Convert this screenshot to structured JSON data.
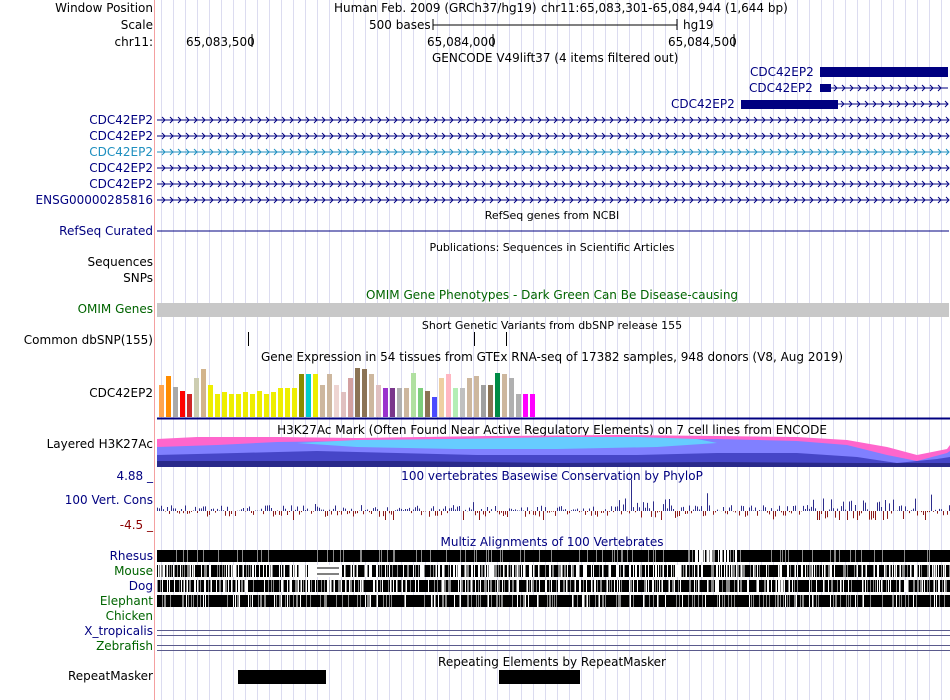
{
  "header": {
    "window_position_label": "Window Position",
    "assembly": "Human Feb. 2009 (GRCh37/hg19)",
    "position": "chr11:65,083,301-65,084,944 (1,644 bp)",
    "scale_label": "Scale",
    "scale_value": "500 bases",
    "scale_db": "hg19",
    "chrom_label": "chr11:",
    "ticks": [
      "65,083,500",
      "65,084,000",
      "65,084,500"
    ]
  },
  "gencode": {
    "title": "GENCODE V49lift37 (4 items filtered out)",
    "transcripts": [
      "CDC42EP2",
      "CDC42EP2",
      "CDC42EP2"
    ],
    "stacked": [
      "CDC42EP2",
      "CDC42EP2",
      "CDC42EP2",
      "CDC42EP2",
      "CDC42EP2",
      "ENSG00000285816"
    ]
  },
  "refseq": {
    "title": "RefSeq genes from NCBI",
    "label": "RefSeq Curated"
  },
  "publications": {
    "title": "Publications: Sequences in Scientific Articles",
    "labels": [
      "Sequences",
      "SNPs"
    ]
  },
  "omim": {
    "title": "OMIM Gene Phenotypes - Dark Green Can Be Disease-causing",
    "label": "OMIM Genes"
  },
  "dbsnp": {
    "title": "Short Genetic Variants from dbSNP release 155",
    "label": "Common dbSNP(155)"
  },
  "gtex": {
    "title": "Gene Expression in 54 tissues from GTEx RNA-seq of 17382 samples, 948 donors (V8, Aug 2019)",
    "label": "CDC42EP2",
    "bar_colors": [
      "#ffa54f",
      "#ff8c00",
      "#a9a9a9",
      "#ff0000",
      "#cd2626",
      "#ccccb0",
      "#d2b48c",
      "#eeee00",
      "#eeee00",
      "#eeee00",
      "#eeee00",
      "#eeee00",
      "#eeee00",
      "#eeee00",
      "#eeee00",
      "#eeee00",
      "#eeee00",
      "#eeee00",
      "#eeee00",
      "#eeee00",
      "#8b8b00",
      "#00cdcd",
      "#eeee00",
      "#cdb79e",
      "#cdb79e",
      "#eed5d2",
      "#e0c0c0",
      "#d2a0a0",
      "#8b7355",
      "#8b7355",
      "#cdb79e",
      "#e0c0c0",
      "#9a32cd",
      "#7a378b",
      "#b0b0b0",
      "#cdb79e",
      "#b0e0a0",
      "#7ccd7c",
      "#8b7355",
      "#4b4bff",
      "#eecfa1",
      "#ffb6c1",
      "#b4eeb4",
      "#c0c0c0",
      "#cdb79e",
      "#cdb79e",
      "#a0a0a0",
      "#8b7355",
      "#008b45",
      "#cdb79e",
      "#b0b0b0",
      "#b0b0b0",
      "#ff00ff",
      "#ff00ff"
    ],
    "bar_values": [
      0.62,
      0.78,
      0.58,
      0.5,
      0.45,
      0.75,
      0.92,
      0.62,
      0.45,
      0.48,
      0.45,
      0.45,
      0.48,
      0.45,
      0.5,
      0.45,
      0.48,
      0.55,
      0.55,
      0.55,
      0.82,
      0.82,
      0.82,
      0.62,
      0.82,
      0.62,
      0.48,
      0.75,
      0.95,
      0.92,
      0.82,
      0.62,
      0.55,
      0.55,
      0.55,
      0.55,
      0.85,
      0.55,
      0.5,
      0.38,
      0.75,
      0.82,
      0.55,
      0.55,
      0.75,
      0.78,
      0.62,
      0.62,
      0.85,
      0.82,
      0.75,
      0.45,
      0.45,
      0.45
    ]
  },
  "h3k27ac": {
    "title": "H3K27Ac Mark (Often Found Near Active Regulatory Elements) on 7 cell lines from ENCODE",
    "label": "Layered H3K27Ac"
  },
  "cons": {
    "title": "100 vertebrates Basewise Conservation by PhyloP",
    "label": "100 Vert. Cons",
    "max": "4.88 _",
    "min": "-4.5 _"
  },
  "multiz": {
    "title": "Multiz Alignments of 100 Vertebrates",
    "species": [
      "Rhesus",
      "Mouse",
      "Dog",
      "Elephant",
      "Chicken",
      "X_tropicalis",
      "Zebrafish"
    ]
  },
  "repeatmasker": {
    "title": "Repeating Elements by RepeatMasker",
    "label": "RepeatMasker"
  },
  "colors": {
    "track_blue": "#000080",
    "omim_grey": "#c8c8c8",
    "separator": "#f4a0a0"
  }
}
